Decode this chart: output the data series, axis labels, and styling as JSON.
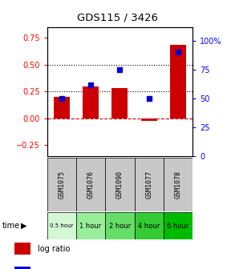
{
  "title": "GDS115 / 3426",
  "samples": [
    "GSM1075",
    "GSM1076",
    "GSM1090",
    "GSM1077",
    "GSM1078"
  ],
  "time_labels": [
    "0.5 hour",
    "1 hour",
    "2 hour",
    "4 hour",
    "6 hour"
  ],
  "log_ratios": [
    0.2,
    0.3,
    0.285,
    -0.02,
    0.68
  ],
  "percentile_ranks": [
    50,
    62,
    75,
    50,
    90
  ],
  "bar_color": "#cc0000",
  "dot_color": "#0000cc",
  "ylim_left": [
    -0.35,
    0.85
  ],
  "ylim_right": [
    0,
    112
  ],
  "yticks_left": [
    -0.25,
    0.0,
    0.25,
    0.5,
    0.75
  ],
  "yticks_right": [
    0,
    25,
    50,
    75,
    100
  ],
  "hline_y_left": [
    0.25,
    0.5
  ],
  "sample_box_color": "#c8c8c8",
  "time_colors": [
    "#d4f7d4",
    "#99ee99",
    "#66dd66",
    "#33cc33",
    "#00bb00"
  ]
}
